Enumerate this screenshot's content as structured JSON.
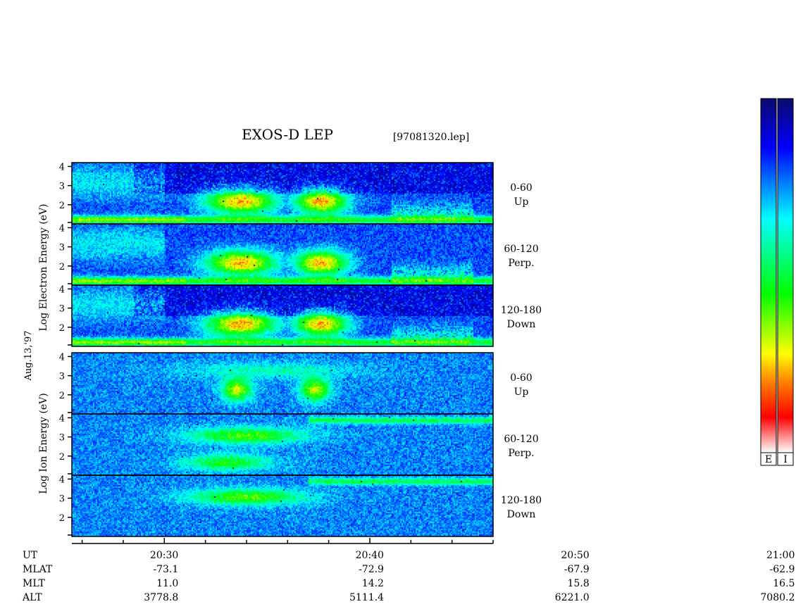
{
  "chart_data": {
    "type": "heatmap",
    "title": "EXOS-D LEP",
    "file_label": "[97081320.lep]",
    "date_label": "Aug.13,'97",
    "groups": [
      {
        "name": "electron",
        "ylabel": "Log Electron Energy (eV)",
        "panels": [
          {
            "angle": "0-60",
            "direction": "Up"
          },
          {
            "angle": "60-120",
            "direction": "Perp."
          },
          {
            "angle": "120-180",
            "direction": "Down"
          }
        ]
      },
      {
        "name": "ion",
        "ylabel": "Log Ion Energy (eV)",
        "panels": [
          {
            "angle": "0-60",
            "direction": "Up"
          },
          {
            "angle": "60-120",
            "direction": "Perp."
          },
          {
            "angle": "120-180",
            "direction": "Down"
          }
        ]
      }
    ],
    "y_ticks": [
      "4",
      "3",
      "2"
    ],
    "ylim": [
      1,
      4.2
    ],
    "x_range_minutes": [
      25.5,
      46
    ],
    "x_ticks": [
      {
        "time": "20:30",
        "minutes": 30,
        "MLAT": "-73.1",
        "MLT": "11.0",
        "ALT": "3778.8"
      },
      {
        "time": "20:40",
        "minutes": 40,
        "MLAT": "-72.9",
        "MLT": "14.2",
        "ALT": "5111.4"
      },
      {
        "time": "20:50",
        "minutes": 50,
        "MLAT": "-67.9",
        "MLT": "15.8",
        "ALT": "6221.0"
      },
      {
        "time": "21:00",
        "minutes": 60,
        "MLAT": "-62.9",
        "MLT": "16.5",
        "ALT": "7080.2"
      }
    ],
    "row_labels": [
      "UT",
      "MLAT",
      "MLT",
      "ALT"
    ],
    "colorbar": {
      "labels": [
        "E",
        "I"
      ],
      "colors": [
        "#0a0a6e",
        "#0000ff",
        "#00ffff",
        "#00ff00",
        "#ffff00",
        "#ff7f00",
        "#ff0000",
        "#ffffff"
      ]
    }
  }
}
